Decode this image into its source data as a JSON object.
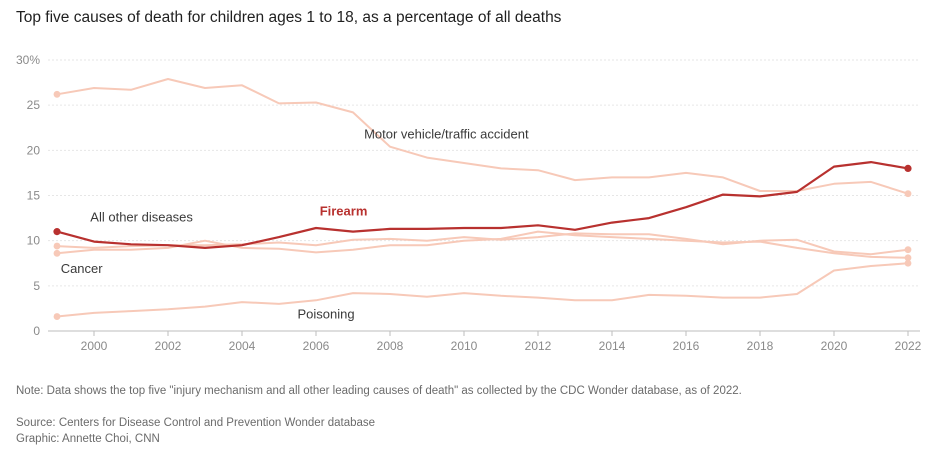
{
  "title": "Top five causes of death for children ages 1 to 18, as a percentage of all deaths",
  "note": "Note: Data shows the top five \"injury mechanism and all other leading causes of death\" as collected by the CDC Wonder database, as of 2022.",
  "source": "Source: Centers for Disease Control and Prevention Wonder database",
  "graphic": "Graphic: Annette Choi, CNN",
  "colors": {
    "highlight": "#b8312f",
    "muted": "#f7c9b8",
    "grid": "#e6e6e6",
    "axis": "#bdbdbd"
  },
  "chart_data": {
    "type": "line",
    "title": "Top five causes of death for children ages 1 to 18, as a percentage of all deaths",
    "xlabel": "",
    "ylabel": "",
    "xlim": [
      1999,
      2022
    ],
    "ylim": [
      0,
      30
    ],
    "x_ticks": [
      2000,
      2002,
      2004,
      2006,
      2008,
      2010,
      2012,
      2014,
      2016,
      2018,
      2020,
      2022
    ],
    "y_ticks": [
      0,
      5,
      10,
      15,
      20,
      25,
      30
    ],
    "y_tick_labels": [
      "0",
      "5",
      "10",
      "15",
      "20",
      "25",
      "30%"
    ],
    "grid": true,
    "x": [
      1999,
      2000,
      2001,
      2002,
      2003,
      2004,
      2005,
      2006,
      2007,
      2008,
      2009,
      2010,
      2011,
      2012,
      2013,
      2014,
      2015,
      2016,
      2017,
      2018,
      2019,
      2020,
      2021,
      2022
    ],
    "series": [
      {
        "name": "Motor vehicle/traffic accident",
        "highlight": false,
        "values": [
          26.2,
          26.9,
          26.7,
          27.9,
          26.9,
          27.2,
          25.2,
          25.3,
          24.2,
          20.4,
          19.2,
          18.6,
          18.0,
          17.8,
          16.7,
          17.0,
          17.0,
          17.5,
          17.0,
          15.5,
          15.5,
          16.3,
          16.5,
          15.2
        ]
      },
      {
        "name": "Firearm",
        "highlight": true,
        "values": [
          11.0,
          9.9,
          9.6,
          9.5,
          9.2,
          9.5,
          10.4,
          11.4,
          11.0,
          11.3,
          11.3,
          11.4,
          11.4,
          11.7,
          11.2,
          12.0,
          12.5,
          13.7,
          15.1,
          14.9,
          15.4,
          18.2,
          18.7,
          18.0
        ]
      },
      {
        "name": "All other diseases",
        "highlight": false,
        "values": [
          9.4,
          9.2,
          9.4,
          9.5,
          9.5,
          9.6,
          9.8,
          9.5,
          10.1,
          10.2,
          10.0,
          10.4,
          10.1,
          10.4,
          10.8,
          10.7,
          10.7,
          10.2,
          9.6,
          10.0,
          10.1,
          8.8,
          8.5,
          9.0
        ]
      },
      {
        "name": "Cancer",
        "highlight": false,
        "values": [
          8.6,
          9.0,
          9.0,
          9.2,
          10.0,
          9.2,
          9.1,
          8.7,
          9.0,
          9.5,
          9.5,
          10.0,
          10.2,
          11.0,
          10.6,
          10.4,
          10.2,
          10.0,
          9.8,
          9.9,
          9.2,
          8.6,
          8.2,
          8.1
        ]
      },
      {
        "name": "Poisoning",
        "highlight": false,
        "values": [
          1.6,
          2.0,
          2.2,
          2.4,
          2.7,
          3.2,
          3.0,
          3.4,
          4.2,
          4.1,
          3.8,
          4.2,
          3.9,
          3.7,
          3.4,
          3.4,
          4.0,
          3.9,
          3.7,
          3.7,
          4.1,
          6.7,
          7.2,
          7.5
        ]
      }
    ],
    "annotations": [
      {
        "text": "Motor vehicle/traffic accident",
        "series": "Motor vehicle/traffic accident",
        "x": 2007.3,
        "y": 21.3,
        "anchor": "start"
      },
      {
        "text": "Firearm",
        "series": "Firearm",
        "x": 2006.1,
        "y": 12.8,
        "anchor": "start"
      },
      {
        "text": "All other diseases",
        "series": "All other diseases",
        "x": 1999.9,
        "y": 12.1,
        "anchor": "start"
      },
      {
        "text": "Cancer",
        "series": "Cancer",
        "x": 1999.1,
        "y": 6.4,
        "anchor": "start"
      },
      {
        "text": "Poisoning",
        "series": "Poisoning",
        "x": 2005.5,
        "y": 1.4,
        "anchor": "start"
      }
    ]
  }
}
